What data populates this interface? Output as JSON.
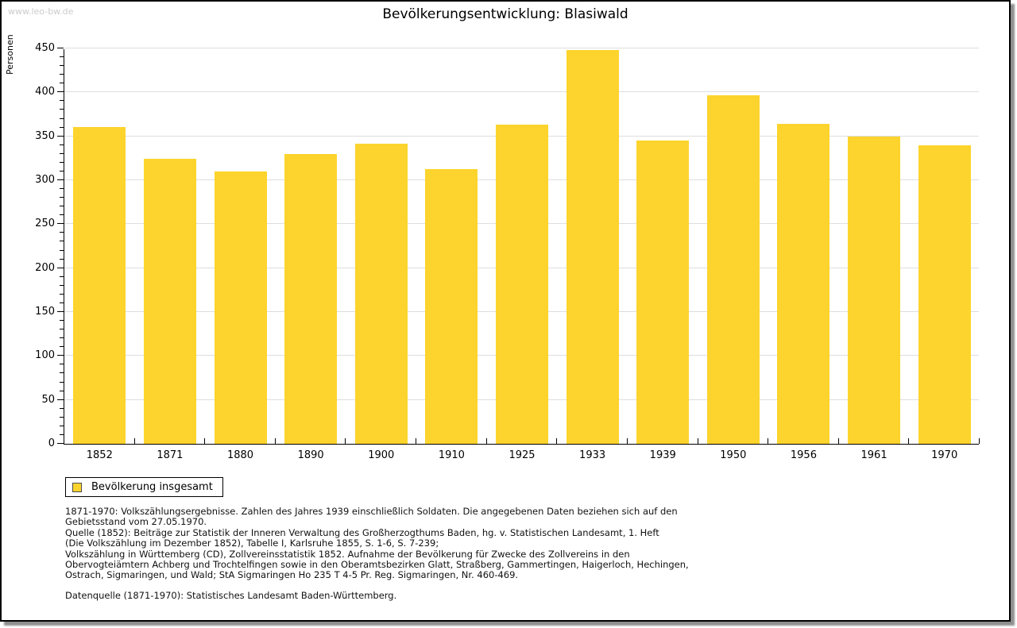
{
  "watermark": "www.leo-bw.de",
  "title": "Bevölkerungsentwicklung: Blasiwald",
  "chart_data": {
    "type": "bar",
    "title": "Bevölkerungsentwicklung: Blasiwald",
    "xlabel": "",
    "ylabel": "Personen",
    "ylim": [
      0,
      450
    ],
    "y_major_step": 50,
    "y_minor_step": 10,
    "grid": true,
    "legend_position": "bottom-left",
    "categories": [
      "1852",
      "1871",
      "1880",
      "1890",
      "1900",
      "1910",
      "1925",
      "1933",
      "1939",
      "1950",
      "1956",
      "1961",
      "1970"
    ],
    "series": [
      {
        "name": "Bevölkerung insgesamt",
        "color": "#fcd42d",
        "values": [
          361,
          324,
          310,
          330,
          342,
          313,
          363,
          448,
          345,
          397,
          364,
          350,
          340
        ]
      }
    ]
  },
  "legend": {
    "label": "Bevölkerung insgesamt",
    "swatch_color": "#fcd42d"
  },
  "footnotes": {
    "lines": [
      "1871-1970: Volkszählungsergebnisse. Zahlen des Jahres 1939 einschließlich Soldaten. Die angegebenen Daten beziehen sich auf den",
      "Gebietsstand vom 27.05.1970.",
      "Quelle (1852): Beiträge zur Statistik der Inneren Verwaltung des Großherzogthums Baden, hg. v. Statistischen Landesamt, 1. Heft",
      "(Die Volkszählung im Dezember 1852), Tabelle I, Karlsruhe 1855, S. 1-6, S. 7-239;",
      "Volkszählung in Württemberg (CD), Zollvereinsstatistik 1852. Aufnahme der Bevölkerung für Zwecke des Zollvereins in den",
      "Obervogteiämtern Achberg und Trochtelfingen sowie in den Oberamtsbezirken Glatt, Straßberg, Gammertingen, Haigerloch, Hechingen,",
      "Ostrach, Sigmaringen, und Wald; StA Sigmaringen Ho 235 T 4-5 Pr. Reg. Sigmaringen, Nr. 460-469."
    ],
    "datasource": "Datenquelle (1871-1970): Statistisches Landesamt Baden-Württemberg."
  },
  "colors": {
    "bar": "#fcd42d",
    "grid": "#dedede",
    "axis": "#000000",
    "watermark": "#cccccc"
  }
}
